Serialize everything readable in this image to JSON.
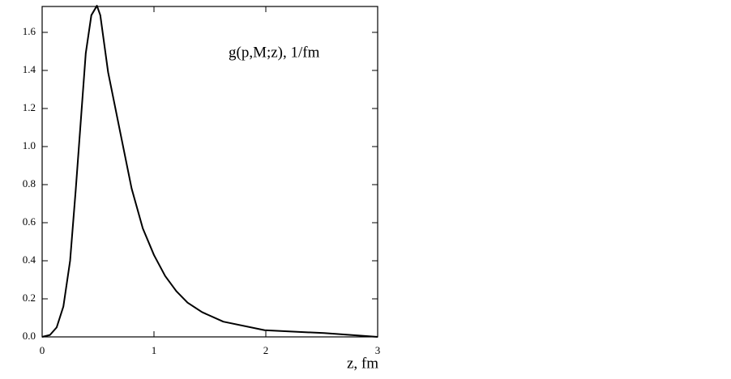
{
  "chart_data": {
    "type": "line",
    "annotation": "g(p,M;z), 1/fm",
    "x_label": "z, fm",
    "x": [
      0,
      0.07,
      0.13,
      0.19,
      0.25,
      0.3,
      0.35,
      0.39,
      0.44,
      0.49,
      0.52,
      0.59,
      0.7,
      0.8,
      0.9,
      1.0,
      1.1,
      1.2,
      1.3,
      1.43,
      1.62,
      1.99,
      2.52,
      3.0
    ],
    "series": [
      {
        "color": "#000000",
        "values": [
          0,
          0.01,
          0.05,
          0.16,
          0.4,
          0.77,
          1.17,
          1.49,
          1.69,
          1.74,
          1.69,
          1.39,
          1.07,
          0.78,
          0.57,
          0.43,
          0.32,
          0.24,
          0.18,
          0.13,
          0.08,
          0.035,
          0.02,
          0.0
        ]
      }
    ],
    "xlim": [
      0,
      3
    ],
    "ylim": [
      0,
      1.736
    ],
    "xticks": [
      0,
      1,
      2,
      3
    ],
    "yticks": [
      {
        "value": 0,
        "label": "0.0"
      },
      {
        "value": 0.2,
        "label": "0.2"
      },
      {
        "value": 0.4,
        "label": "0.4"
      },
      {
        "value": 0.6,
        "label": "0.6"
      },
      {
        "value": 0.8,
        "label": "0.8"
      },
      {
        "value": 1.0,
        "label": "1.0"
      },
      {
        "value": 1.2,
        "label": "1.2"
      },
      {
        "value": 1.4,
        "label": "1.4"
      },
      {
        "value": 1.6,
        "label": "1.6"
      }
    ],
    "grid": false
  }
}
